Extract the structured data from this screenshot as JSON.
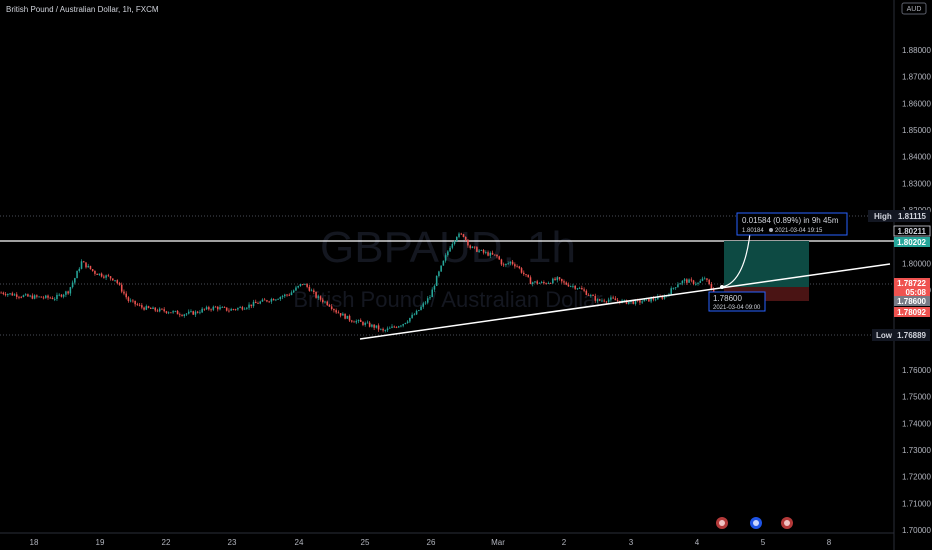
{
  "header": {
    "symbol_title": "British Pound / Australian Dollar, 1h, FXCM",
    "currency": "AUD"
  },
  "watermark": {
    "symbol": "GBPAUD, 1h",
    "name": "British Pound / Australian Dollar"
  },
  "chart_data": {
    "type": "candlestick",
    "symbol": "GBPAUD",
    "interval": "1h",
    "source": "FXCM",
    "y_axis": {
      "ticks": [
        "1.88000",
        "1.87000",
        "1.86000",
        "1.85000",
        "1.84000",
        "1.83000",
        "1.82000",
        "1.80000",
        "1.79000",
        "1.76000",
        "1.75000",
        "1.74000",
        "1.73000",
        "1.72000",
        "1.71000",
        "1.70000"
      ],
      "ylim": [
        1.7,
        1.88
      ]
    },
    "x_axis": {
      "ticks": [
        "18",
        "19",
        "22",
        "23",
        "24",
        "25",
        "26",
        "Mar",
        "2",
        "3",
        "4",
        "5",
        "8"
      ]
    },
    "price_path": [
      [
        0,
        1.789
      ],
      [
        4,
        1.7875
      ],
      [
        8,
        1.787
      ],
      [
        10,
        1.7895
      ],
      [
        11,
        1.7945
      ],
      [
        12,
        1.8005
      ],
      [
        14,
        1.7965
      ],
      [
        17,
        1.794
      ],
      [
        18,
        1.79
      ],
      [
        19,
        1.786
      ],
      [
        21,
        1.7835
      ],
      [
        23,
        1.7825
      ],
      [
        25,
        1.782
      ],
      [
        27,
        1.781
      ],
      [
        29,
        1.7815
      ],
      [
        30,
        1.7825
      ],
      [
        32,
        1.7835
      ],
      [
        34,
        1.7825
      ],
      [
        36,
        1.7835
      ],
      [
        38,
        1.785
      ],
      [
        41,
        1.787
      ],
      [
        43,
        1.7885
      ],
      [
        45,
        1.7925
      ],
      [
        46,
        1.7905
      ],
      [
        47,
        1.7875
      ],
      [
        49,
        1.7845
      ],
      [
        50,
        1.782
      ],
      [
        52,
        1.779
      ],
      [
        54,
        1.7775
      ],
      [
        56,
        1.776
      ],
      [
        57,
        1.7745
      ],
      [
        58,
        1.7755
      ],
      [
        60,
        1.7775
      ],
      [
        61,
        1.7795
      ],
      [
        62,
        1.7815
      ],
      [
        64,
        1.7875
      ],
      [
        65,
        1.7945
      ],
      [
        66,
        1.8005
      ],
      [
        67,
        1.8065
      ],
      [
        68,
        1.8105
      ],
      [
        69,
        1.8105
      ],
      [
        70,
        1.806
      ],
      [
        72,
        1.804
      ],
      [
        74,
        1.8025
      ],
      [
        75,
        1.799
      ],
      [
        76,
        1.8005
      ],
      [
        77,
        1.799
      ],
      [
        79,
        1.793
      ],
      [
        81,
        1.7925
      ],
      [
        83,
        1.794
      ],
      [
        84,
        1.7925
      ],
      [
        86,
        1.791
      ],
      [
        87,
        1.7895
      ],
      [
        89,
        1.786
      ],
      [
        91,
        1.7865
      ],
      [
        93,
        1.7855
      ],
      [
        95,
        1.7855
      ],
      [
        97,
        1.7865
      ],
      [
        99,
        1.7875
      ],
      [
        101,
        1.7925
      ],
      [
        102,
        1.7935
      ],
      [
        104,
        1.7925
      ],
      [
        105,
        1.7945
      ],
      [
        106,
        1.7905
      ],
      [
        107,
        1.786
      ]
    ],
    "levels": [
      {
        "label": "High",
        "value": "1.81115"
      },
      {
        "label": "",
        "value": "1.80211"
      },
      {
        "label": "",
        "value": "1.80202"
      },
      {
        "label": "",
        "value": "1.78722",
        "sub": "05:08"
      },
      {
        "label": "",
        "value": "1.78600"
      },
      {
        "label": "",
        "value": "1.78092"
      },
      {
        "label": "Low",
        "value": "1.76889"
      }
    ],
    "prediction": {
      "label": "0.01584 (0.89%) in 9h 45m",
      "sub_price": "1.80184",
      "sub_time": "2021-03-04  19:15"
    },
    "entry": {
      "price": "1.78600",
      "time": "2021-03-04 09:00"
    },
    "colors": {
      "up": "#26a69a",
      "down": "#ef5350",
      "accent": "#2962ff",
      "profit_zone": "#0d4a43",
      "loss_zone": "#4a1414"
    }
  },
  "bottom_icons": [
    "event-icon",
    "event-icon",
    "event-icon"
  ]
}
